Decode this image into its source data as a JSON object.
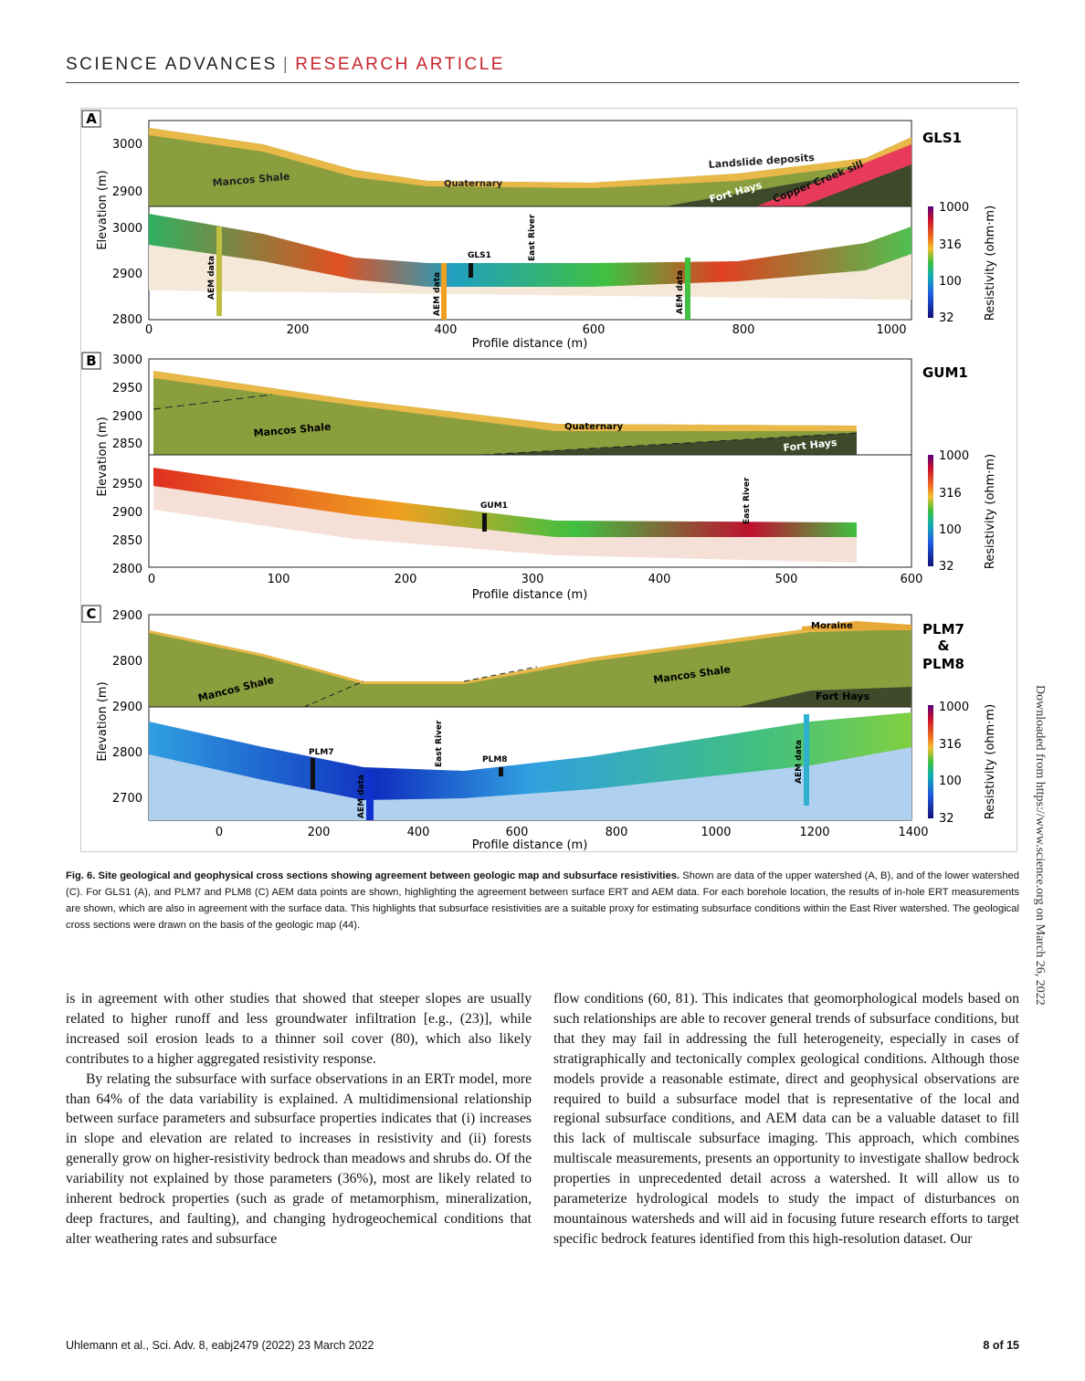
{
  "header": {
    "journal": "SCIENCE ADVANCES",
    "separator": "|",
    "section": "RESEARCH ARTICLE"
  },
  "sidebar_note": "Downloaded from https://www.science.org on March 26, 2022",
  "figure": {
    "panels": [
      {
        "letter": "A",
        "site": "GLS1",
        "ylabel": "Elevation (m)",
        "geo_ticks": [
          "3000",
          "2900"
        ],
        "ert_ticks": [
          "3000",
          "2900",
          "2800"
        ],
        "x_ticks": [
          "0",
          "200",
          "400",
          "600",
          "800",
          "1000"
        ],
        "xlabel": "Profile distance (m)",
        "units": [
          "Mancos Shale",
          "Quaternary",
          "Landslide deposits",
          "Fort Hays",
          "Copper Creek sill"
        ],
        "markers": [
          "AEM data",
          "AEM data",
          "AEM data",
          "GLS1",
          "East River"
        ]
      },
      {
        "letter": "B",
        "site": "GUM1",
        "ylabel": "Elevation (m)",
        "geo_ticks": [
          "3000",
          "2950",
          "2900",
          "2850"
        ],
        "ert_ticks": [
          "2950",
          "2900",
          "2850",
          "2800"
        ],
        "x_ticks": [
          "0",
          "100",
          "200",
          "300",
          "400",
          "500",
          "600"
        ],
        "xlabel": "Profile distance (m)",
        "units": [
          "Mancos Shale",
          "Quaternary",
          "Fort Hays"
        ],
        "markers": [
          "GUM1",
          "East River"
        ]
      },
      {
        "letter": "C",
        "site_lines": [
          "PLM7",
          "&",
          "PLM8"
        ],
        "ylabel": "Elevation (m)",
        "geo_ticks": [
          "2900",
          "2800"
        ],
        "ert_ticks": [
          "2900",
          "2800",
          "2700"
        ],
        "x_ticks": [
          "0",
          "200",
          "400",
          "600",
          "800",
          "1000",
          "1200",
          "1400"
        ],
        "xlabel": "Profile distance (m)",
        "units": [
          "Mancos Shale",
          "Mancos Shale",
          "Moraine",
          "Fort Hays"
        ],
        "markers": [
          "PLM7",
          "PLM8",
          "AEM data",
          "AEM data",
          "East River"
        ]
      }
    ],
    "colorbar": {
      "label": "Resistivity (ohm·m)",
      "ticks": [
        "1000",
        "316",
        "100",
        "32"
      ]
    }
  },
  "caption": {
    "title": "Fig. 6. Site geological and geophysical cross sections showing agreement between geologic map and subsurface resistivities.",
    "body": " Shown are data of the upper watershed (A, B), and of the lower watershed (C). For GLS1 (A), and PLM7 and PLM8 (C) AEM data points are shown, highlighting the agreement between surface ERT and AEM data. For each borehole location, the results of in-hole ERT measurements are shown, which are also in agreement with the surface data. This highlights that subsurface resistivities are a suitable proxy for estimating subsurface conditions within the East River watershed. The geological cross sections were drawn on the basis of the geologic map (44)."
  },
  "body_text": {
    "col1_p1": "is in agreement with other studies that showed that steeper slopes are usually related to higher runoff and less groundwater infiltration [e.g., (23)], while increased soil erosion leads to a thinner soil cover (80), which also likely contributes to a higher aggregated resistivity response.",
    "col1_p2": "By relating the subsurface with surface observations in an ERTr model, more than 64% of the data variability is explained. A multidimensional relationship between surface parameters and subsurface properties indicates that (i) increases in slope and elevation are related to increases in resistivity and (ii) forests generally grow on higher-resistivity bedrock than meadows and shrubs do. Of the variability not explained by those parameters (36%), most are likely related to inherent bedrock properties (such as grade of metamorphism, mineralization, deep fractures, and faulting), and changing hydrogeochemical conditions that alter weathering rates and subsurface",
    "col2_p1": "flow conditions (60, 81). This indicates that geomorphological models based on such relationships are able to recover general trends of subsurface conditions, but that they may fail in addressing the full heterogeneity, especially in cases of stratigraphically and tectonically complex geological conditions. Although those models provide a reasonable estimate, direct and geophysical observations are required to build a subsurface model that is representative of the local and regional subsurface conditions, and AEM data can be a valuable dataset to fill this lack of multiscale subsurface imaging. This approach, which combines multiscale measurements, presents an opportunity to investigate shallow bedrock properties in unprecedented detail across a watershed. It will allow us to parameterize hydrological models to study the impact of disturbances on mountainous watersheds and will aid in focusing future research efforts to target specific bedrock features identified from this high-resolution dataset. Our"
  },
  "footer": {
    "citation": "Uhlemann et al., Sci. Adv. 8, eabj2479 (2022)     23 March 2022",
    "page": "8 of 15"
  }
}
